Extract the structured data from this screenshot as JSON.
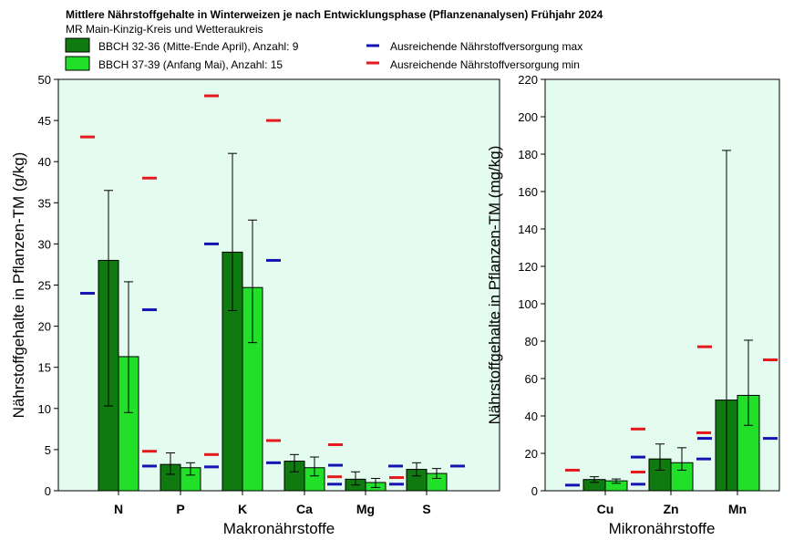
{
  "title": "Mittlere Nährstoffgehalte in Winterweizen je nach Entwicklungsphase (Pflanzenanalysen) Frühjahr 2024",
  "subtitle": "MR Main-Kinzig-Kreis und Wetteraukreis",
  "colors": {
    "series1": "#0f7a10",
    "series2": "#22e02a",
    "max_line": "#1414b4",
    "min_line": "#e41a1a",
    "plot_bg": "#e4fbef"
  },
  "legend": {
    "series1": "BBCH 32-36 (Mitte-Ende April), Anzahl: 9",
    "series2": "BBCH 37-39 (Anfang Mai), Anzahl: 15",
    "max": "Ausreichende Nährstoffversorgung max",
    "min": "Ausreichende Nährstoffversorgung min"
  },
  "chart_data": [
    {
      "type": "bar",
      "xlabel": "Makronährstoffe",
      "ylabel": "Nährstoffgehalte in Pflanzen-TM (g/kg)",
      "ylim": [
        0,
        50
      ],
      "yticks": [
        0,
        5,
        10,
        15,
        20,
        25,
        30,
        35,
        40,
        45,
        50
      ],
      "categories": [
        "N",
        "P",
        "K",
        "Ca",
        "Mg",
        "S"
      ],
      "series": [
        {
          "name": "BBCH 32-36 (Mitte-Ende April), Anzahl: 9",
          "values": [
            28,
            3.2,
            29,
            3.6,
            1.4,
            2.6
          ],
          "err_low": [
            10.3,
            2.0,
            21.9,
            2.3,
            0.7,
            1.8
          ],
          "err_high": [
            36.5,
            4.6,
            41,
            4.4,
            2.3,
            3.4
          ]
        },
        {
          "name": "BBCH 37-39 (Anfang Mai), Anzahl: 15",
          "values": [
            16.3,
            2.8,
            24.7,
            2.8,
            1.0,
            2.1
          ],
          "err_low": [
            9.5,
            1.9,
            18,
            1.8,
            0.4,
            1.5
          ],
          "err_high": [
            25.4,
            3.4,
            32.9,
            4.1,
            1.5,
            2.7
          ]
        }
      ],
      "ref_max": [
        [
          24,
          22
        ],
        [
          3.0,
          2.9
        ],
        [
          30,
          28
        ],
        [
          3.4,
          3.1
        ],
        [
          0.8,
          0.8
        ],
        [
          3.0,
          3.0
        ]
      ],
      "ref_min": [
        [
          43,
          38
        ],
        [
          4.8,
          4.4
        ],
        [
          48,
          45
        ],
        [
          6.1,
          5.6
        ],
        [
          1.7,
          1.6
        ],
        [
          null,
          null
        ]
      ]
    },
    {
      "type": "bar",
      "xlabel": "Mikronährstoffe",
      "ylabel": "Nährstoffgehalte in Pflanzen-TM (mg/kg)",
      "ylim": [
        0,
        220
      ],
      "yticks": [
        0,
        20,
        40,
        60,
        80,
        100,
        120,
        140,
        160,
        180,
        200,
        220
      ],
      "categories": [
        "Cu",
        "Zn",
        "Mn"
      ],
      "series": [
        {
          "name": "BBCH 32-36 (Mitte-Ende April), Anzahl: 9",
          "values": [
            6,
            17,
            48.5
          ],
          "err_low": [
            4.5,
            11,
            0
          ],
          "err_high": [
            7.5,
            25,
            182
          ]
        },
        {
          "name": "BBCH 37-39 (Anfang Mai), Anzahl: 15",
          "values": [
            5.3,
            15,
            51
          ],
          "err_low": [
            4,
            11,
            35
          ],
          "err_high": [
            6.3,
            23,
            80.5
          ]
        }
      ],
      "ref_max": [
        [
          3,
          3.5
        ],
        [
          18,
          17
        ],
        [
          28,
          28
        ]
      ],
      "ref_min": [
        [
          11,
          10
        ],
        [
          33,
          31
        ],
        [
          77,
          70
        ]
      ]
    }
  ]
}
